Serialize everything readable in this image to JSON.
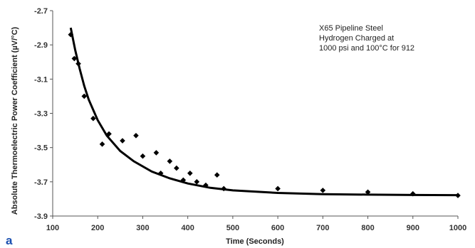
{
  "chart_data": {
    "type": "scatter",
    "ylabel": "Absolute Thermoelectric Power Coefficient (µV/°C)",
    "xlabel": "Time (Seconds)",
    "xlim": [
      100,
      1000
    ],
    "ylim": [
      -3.9,
      -2.7
    ],
    "xticks": [
      "100",
      "200",
      "300",
      "400",
      "500",
      "600",
      "700",
      "800",
      "900",
      "1000"
    ],
    "yticks": [
      "-2.7",
      "-2.9",
      "-3.1",
      "-3.3",
      "-3.5",
      "-3.7",
      "-3.9"
    ],
    "grid": false,
    "annotation": [
      "X65 Pipeline Steel",
      "Hydrogen Charged at",
      "1000 psi and 100°C for 912"
    ],
    "panel_label": "a",
    "series": [
      {
        "marker": "diamond",
        "x": [
          140,
          148,
          157,
          170,
          190,
          210,
          225,
          255,
          285,
          300,
          330,
          340,
          360,
          375,
          390,
          405,
          420,
          440,
          465,
          480,
          600,
          700,
          800,
          900,
          1000
        ],
        "y": [
          -2.84,
          -2.98,
          -3.01,
          -3.2,
          -3.33,
          -3.48,
          -3.42,
          -3.46,
          -3.43,
          -3.55,
          -3.53,
          -3.65,
          -3.58,
          -3.62,
          -3.69,
          -3.65,
          -3.7,
          -3.72,
          -3.66,
          -3.74,
          -3.74,
          -3.75,
          -3.76,
          -3.77,
          -3.78
        ]
      },
      {
        "style": "line",
        "x": [
          140,
          150,
          160,
          170,
          180,
          200,
          220,
          250,
          280,
          320,
          360,
          400,
          450,
          500,
          600,
          700,
          800,
          900,
          1000
        ],
        "y": [
          -2.8,
          -2.93,
          -3.04,
          -3.14,
          -3.22,
          -3.34,
          -3.43,
          -3.52,
          -3.58,
          -3.64,
          -3.68,
          -3.71,
          -3.735,
          -3.75,
          -3.765,
          -3.772,
          -3.775,
          -3.777,
          -3.778
        ]
      }
    ]
  }
}
